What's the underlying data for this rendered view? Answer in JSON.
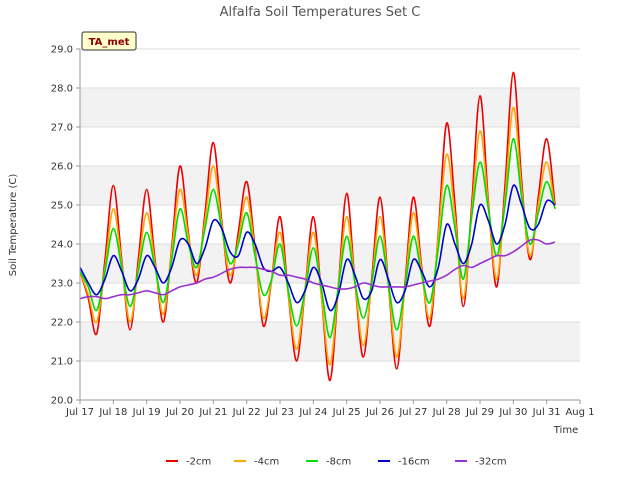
{
  "chart_data": {
    "type": "line",
    "title": "Alfalfa Soil Temperatures Set C",
    "xlabel": "Time",
    "ylabel": "Soil Temperature (C)",
    "badge": "TA_met",
    "ylim": [
      20.0,
      29.0
    ],
    "xlim": [
      17,
      32
    ],
    "y_ticks": [
      "20.0",
      "21.0",
      "22.0",
      "23.0",
      "24.0",
      "25.0",
      "26.0",
      "27.0",
      "28.0",
      "29.0"
    ],
    "x_ticks": [
      "Jul 17",
      "Jul 18",
      "Jul 19",
      "Jul 20",
      "Jul 21",
      "Jul 22",
      "Jul 23",
      "Jul 24",
      "Jul 25",
      "Jul 26",
      "Jul 27",
      "Jul 28",
      "Jul 29",
      "Jul 30",
      "Jul 31",
      "Aug 1"
    ],
    "grid": true,
    "legend_position": "bottom",
    "x": [
      17.0,
      17.25,
      17.5,
      17.75,
      18.0,
      18.25,
      18.5,
      18.75,
      19.0,
      19.25,
      19.5,
      19.75,
      20.0,
      20.25,
      20.5,
      20.75,
      21.0,
      21.25,
      21.5,
      21.75,
      22.0,
      22.25,
      22.5,
      22.75,
      23.0,
      23.25,
      23.5,
      23.75,
      24.0,
      24.25,
      24.5,
      24.75,
      25.0,
      25.25,
      25.5,
      25.75,
      26.0,
      26.25,
      26.5,
      26.75,
      27.0,
      27.25,
      27.5,
      27.75,
      28.0,
      28.25,
      28.5,
      28.75,
      29.0,
      29.25,
      29.5,
      29.75,
      30.0,
      30.25,
      30.5,
      30.75,
      31.0,
      31.25
    ],
    "series": [
      {
        "name": "-2cm",
        "color": "#ee0000",
        "values": [
          23.3,
          22.6,
          21.7,
          23.6,
          25.5,
          23.6,
          21.8,
          23.6,
          25.4,
          23.6,
          22.0,
          23.9,
          26.0,
          24.3,
          23.0,
          24.8,
          26.6,
          24.6,
          23.0,
          24.3,
          25.6,
          23.9,
          21.9,
          23.1,
          24.7,
          22.7,
          21.0,
          22.8,
          24.7,
          22.6,
          20.5,
          22.9,
          25.3,
          23.0,
          21.1,
          23.1,
          25.2,
          23.0,
          20.8,
          23.0,
          25.2,
          23.4,
          21.9,
          24.3,
          27.1,
          25.0,
          22.4,
          25.0,
          27.8,
          25.1,
          22.9,
          25.5,
          28.4,
          25.6,
          23.6,
          25.2,
          26.7,
          25.0
        ]
      },
      {
        "name": "-4cm",
        "color": "#ffa500",
        "values": [
          23.3,
          22.7,
          22.0,
          23.4,
          24.9,
          23.5,
          22.0,
          23.4,
          24.8,
          23.5,
          22.2,
          23.8,
          25.4,
          24.2,
          23.2,
          24.6,
          26.0,
          24.5,
          23.2,
          24.1,
          25.2,
          23.8,
          22.1,
          23.1,
          24.3,
          22.7,
          21.3,
          22.8,
          24.3,
          22.6,
          20.9,
          22.9,
          24.7,
          23.0,
          21.4,
          23.0,
          24.7,
          23.0,
          21.1,
          22.9,
          24.8,
          23.3,
          22.1,
          24.2,
          26.3,
          24.7,
          22.6,
          24.8,
          26.9,
          25.0,
          23.1,
          25.2,
          27.5,
          25.4,
          23.7,
          25.0,
          26.1,
          24.9
        ]
      },
      {
        "name": "-8cm",
        "color": "#00dd00",
        "values": [
          23.3,
          22.9,
          22.3,
          23.3,
          24.4,
          23.4,
          22.4,
          23.3,
          24.3,
          23.4,
          22.5,
          23.6,
          24.9,
          24.0,
          23.4,
          24.4,
          25.4,
          24.4,
          23.5,
          24.0,
          24.8,
          23.7,
          22.7,
          23.1,
          24.0,
          22.8,
          21.9,
          22.8,
          23.9,
          22.8,
          21.6,
          22.9,
          24.2,
          23.0,
          22.1,
          23.0,
          24.2,
          23.0,
          21.8,
          22.9,
          24.2,
          23.2,
          22.5,
          23.9,
          25.5,
          24.4,
          23.1,
          24.7,
          26.1,
          24.9,
          23.7,
          25.0,
          26.7,
          25.2,
          24.0,
          24.8,
          25.6,
          24.9
        ]
      },
      {
        "name": "-16cm",
        "color": "#0000cc",
        "values": [
          23.4,
          23.0,
          22.7,
          23.1,
          23.7,
          23.3,
          22.8,
          23.1,
          23.7,
          23.4,
          23.0,
          23.4,
          24.1,
          24.0,
          23.5,
          23.9,
          24.6,
          24.4,
          23.8,
          23.7,
          24.3,
          24.0,
          23.4,
          23.3,
          23.4,
          23.0,
          22.5,
          22.8,
          23.4,
          23.0,
          22.3,
          22.7,
          23.6,
          23.2,
          22.6,
          22.8,
          23.6,
          23.1,
          22.5,
          22.8,
          23.6,
          23.3,
          22.9,
          23.4,
          24.5,
          24.0,
          23.5,
          24.0,
          25.0,
          24.6,
          24.0,
          24.5,
          25.5,
          25.0,
          24.4,
          24.5,
          25.1,
          25.0
        ]
      },
      {
        "name": "-32cm",
        "color": "#9932cc",
        "values": [
          22.6,
          22.65,
          22.65,
          22.6,
          22.65,
          22.7,
          22.7,
          22.75,
          22.8,
          22.75,
          22.7,
          22.8,
          22.9,
          22.95,
          23.0,
          23.1,
          23.15,
          23.25,
          23.35,
          23.4,
          23.4,
          23.4,
          23.35,
          23.3,
          23.2,
          23.2,
          23.15,
          23.1,
          23.0,
          22.95,
          22.9,
          22.85,
          22.85,
          22.9,
          23.0,
          22.95,
          22.9,
          22.9,
          22.9,
          22.9,
          22.95,
          23.0,
          23.05,
          23.1,
          23.2,
          23.35,
          23.45,
          23.4,
          23.5,
          23.6,
          23.7,
          23.7,
          23.8,
          23.95,
          24.1,
          24.1,
          24.0,
          24.05
        ]
      }
    ]
  }
}
